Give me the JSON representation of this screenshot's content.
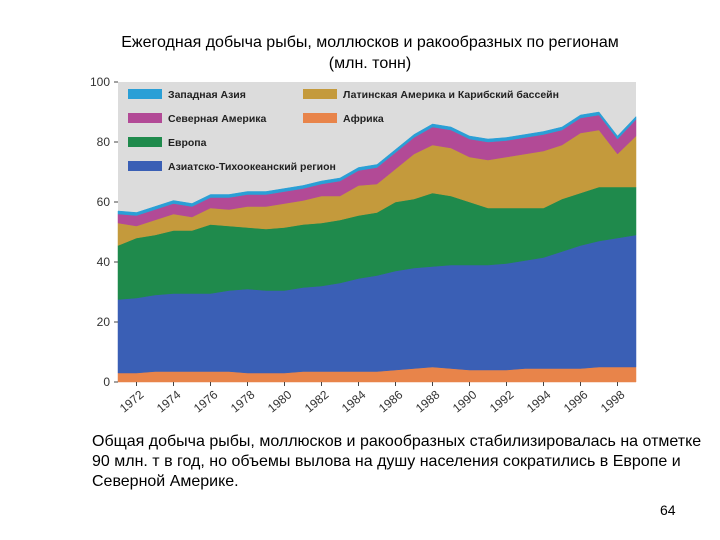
{
  "slide": {
    "title": "Ежегодная добыча рыбы, моллюсков и ракообразных по регионам (млн. тонн)",
    "caption": "Общая добыча рыбы, моллюсков и ракообразных стабилизировалась на отметке 90 млн. т в год, но объемы вылова на душу населения сократились в Европе и Северной Америке.",
    "page_number": "64"
  },
  "chart_data": {
    "type": "area",
    "stacked": true,
    "title": "",
    "xlabel": "",
    "ylabel": "",
    "ylim": [
      0,
      100
    ],
    "yticks": [
      0,
      20,
      40,
      60,
      80,
      100
    ],
    "xtick_labels": [
      "1972",
      "1974",
      "1976",
      "1978",
      "1980",
      "1982",
      "1984",
      "1986",
      "1988",
      "1990",
      "1992",
      "1994",
      "1996",
      "1998"
    ],
    "legend_position": "top",
    "grid": false,
    "x": [
      1971,
      1972,
      1973,
      1974,
      1975,
      1976,
      1977,
      1978,
      1979,
      1980,
      1981,
      1982,
      1983,
      1984,
      1985,
      1986,
      1987,
      1988,
      1989,
      1990,
      1991,
      1992,
      1993,
      1994,
      1995,
      1996,
      1997,
      1998,
      1999
    ],
    "series": [
      {
        "name": "Африка",
        "color": "#e8844a",
        "values": [
          3,
          3,
          3.5,
          3.5,
          3.5,
          3.5,
          3.5,
          3,
          3,
          3,
          3.5,
          3.5,
          3.5,
          3.5,
          3.5,
          4,
          4.5,
          5,
          4.5,
          4,
          4,
          4,
          4.5,
          4.5,
          4.5,
          4.5,
          5,
          5,
          5
        ]
      },
      {
        "name": "Азиатско-Тихоокеанский регион",
        "color": "#3a5fb5",
        "values": [
          24.5,
          25,
          25.5,
          26,
          26,
          26,
          27,
          28,
          27.5,
          27.5,
          28,
          28.5,
          29.5,
          31,
          32,
          33,
          33.5,
          33.5,
          34.5,
          35,
          35,
          35.5,
          36,
          37,
          39,
          41,
          42,
          43,
          44
        ]
      },
      {
        "name": "Европа",
        "color": "#1f8a4c",
        "values": [
          18,
          20,
          20,
          21,
          21,
          23,
          21.5,
          20.5,
          20.5,
          21,
          21,
          21,
          21,
          21,
          21,
          23,
          23,
          24.5,
          23,
          21,
          19,
          18.5,
          17.5,
          16.5,
          17.5,
          17.5,
          18,
          17,
          16
        ]
      },
      {
        "name": "Латинская Америка и Карибский бассейн",
        "color": "#c49a3c",
        "values": [
          7.5,
          4,
          5,
          5.5,
          4.5,
          5.5,
          5.5,
          7,
          7.5,
          8,
          8,
          9,
          8,
          10,
          9.5,
          11,
          15,
          16,
          16,
          15,
          16,
          17,
          18,
          19,
          18,
          20,
          19,
          11,
          17
        ]
      },
      {
        "name": "Северная Америка",
        "color": "#b24a96",
        "values": [
          3,
          3.5,
          3.5,
          3.5,
          3.5,
          3.5,
          4,
          4,
          4,
          4,
          4,
          4,
          5,
          5,
          5.5,
          5.5,
          5.5,
          6,
          6,
          6,
          6,
          5.5,
          5.5,
          5.5,
          5,
          5,
          5,
          5,
          5.5
        ]
      },
      {
        "name": "Западная Азия",
        "color": "#2a9fd6",
        "values": [
          1,
          1,
          1,
          1,
          1,
          1,
          1,
          1,
          1,
          1,
          1,
          1,
          1,
          1,
          1,
          1,
          1,
          1,
          1,
          1,
          1,
          1,
          1,
          1,
          1,
          1,
          1,
          1,
          1
        ]
      }
    ],
    "legend": [
      {
        "name": "Западная Азия",
        "color": "#2a9fd6"
      },
      {
        "name": "Латинская Америка и Карибский бассейн",
        "color": "#c49a3c"
      },
      {
        "name": "Северная Америка",
        "color": "#b24a96"
      },
      {
        "name": "Африка",
        "color": "#e8844a"
      },
      {
        "name": "Европа",
        "color": "#1f8a4c"
      },
      {
        "name": "Азиатско-Тихоокеанский регион",
        "color": "#3a5fb5"
      }
    ],
    "plot_background": "#dcdcdc"
  }
}
